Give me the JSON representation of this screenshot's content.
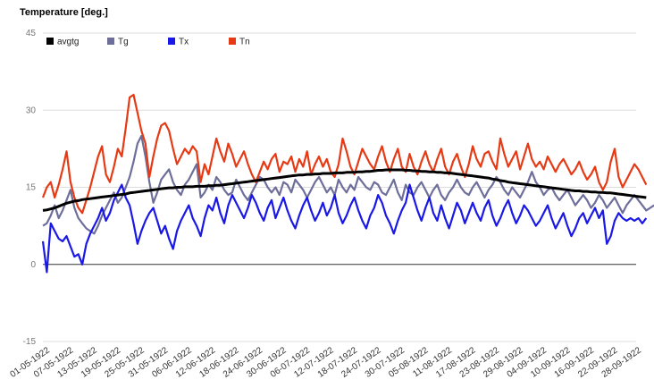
{
  "chart_data": {
    "type": "line",
    "title": "Temperature [deg.]",
    "xlabel": "",
    "ylabel": "",
    "ylim": [
      -15,
      45
    ],
    "yticks": [
      -15,
      0,
      15,
      30,
      45
    ],
    "grid": true,
    "legend_position": "top-left",
    "start_date": "01-05-1922",
    "x_tick_labels": [
      "01-05-1922",
      "07-05-1922",
      "13-05-1922",
      "19-05-1922",
      "25-05-1922",
      "31-05-1922",
      "06-06-1922",
      "12-06-1922",
      "18-06-1922",
      "24-06-1922",
      "30-06-1922",
      "06-07-1922",
      "12-07-1922",
      "18-07-1922",
      "24-07-1922",
      "30-07-1922",
      "05-08-1922",
      "11-08-1922",
      "17-08-1922",
      "23-08-1922",
      "29-08-1922",
      "04-09-1922",
      "10-09-1922",
      "16-09-1922",
      "22-09-1922",
      "28-09-1922"
    ],
    "series": [
      {
        "name": "avgtg",
        "color": "#000000",
        "values": [
          10.5,
          10.6,
          10.8,
          11.0,
          11.3,
          11.6,
          11.9,
          12.1,
          12.3,
          12.4,
          12.6,
          12.7,
          12.8,
          12.9,
          13.0,
          13.1,
          13.2,
          13.3,
          13.4,
          13.5,
          13.6,
          13.7,
          13.9,
          14.0,
          14.1,
          14.2,
          14.3,
          14.4,
          14.5,
          14.6,
          14.7,
          14.8,
          14.9,
          14.9,
          15.0,
          15.0,
          15.1,
          15.1,
          15.1,
          15.2,
          15.2,
          15.2,
          15.3,
          15.3,
          15.4,
          15.4,
          15.5,
          15.6,
          15.7,
          15.8,
          15.9,
          16.0,
          16.1,
          16.2,
          16.3,
          16.4,
          16.5,
          16.6,
          16.7,
          16.8,
          16.9,
          17.0,
          17.1,
          17.2,
          17.3,
          17.4,
          17.4,
          17.5,
          17.5,
          17.6,
          17.6,
          17.7,
          17.7,
          17.7,
          17.8,
          17.8,
          17.8,
          17.9,
          17.9,
          17.9,
          18.0,
          18.0,
          18.1,
          18.1,
          18.2,
          18.3,
          18.3,
          18.4,
          18.4,
          18.4,
          18.4,
          18.4,
          18.3,
          18.3,
          18.2,
          18.2,
          18.1,
          18.1,
          18.0,
          18.0,
          17.9,
          17.9,
          17.8,
          17.8,
          17.7,
          17.6,
          17.5,
          17.4,
          17.3,
          17.2,
          17.1,
          17.0,
          16.9,
          16.8,
          16.6,
          16.5,
          16.3,
          16.2,
          16.0,
          15.9,
          15.8,
          15.7,
          15.6,
          15.5,
          15.4,
          15.3,
          15.2,
          15.1,
          15.0,
          14.9,
          14.8,
          14.7,
          14.6,
          14.5,
          14.4,
          14.3,
          14.3,
          14.2,
          14.2,
          14.1,
          14.1,
          14.0,
          14.0,
          13.9,
          13.9,
          13.8,
          13.7,
          13.6,
          13.5,
          13.4,
          13.3,
          13.2,
          13.1,
          13.0
        ]
      },
      {
        "name": "Tg",
        "color": "#6e6e9a",
        "values": [
          7.5,
          8.0,
          9.5,
          11.5,
          9.0,
          10.5,
          12.5,
          14.5,
          11.0,
          9.0,
          8.0,
          7.0,
          6.5,
          6.0,
          7.5,
          9.5,
          11.0,
          12.5,
          14.0,
          12.0,
          13.0,
          15.0,
          17.0,
          20.0,
          23.5,
          25.0,
          21.0,
          16.0,
          12.0,
          14.0,
          16.5,
          17.5,
          18.5,
          16.0,
          14.5,
          13.5,
          15.5,
          16.5,
          18.0,
          19.5,
          13.0,
          14.0,
          15.5,
          14.5,
          17.0,
          16.0,
          14.5,
          13.5,
          14.0,
          16.5,
          15.0,
          13.5,
          12.5,
          14.0,
          15.5,
          17.0,
          16.5,
          15.0,
          14.0,
          15.0,
          13.5,
          16.0,
          15.5,
          14.0,
          16.5,
          15.5,
          14.5,
          13.0,
          14.5,
          16.0,
          17.0,
          15.5,
          14.0,
          15.0,
          13.5,
          16.5,
          15.0,
          14.0,
          15.5,
          14.5,
          17.0,
          16.0,
          15.0,
          14.5,
          16.0,
          15.5,
          14.0,
          13.5,
          15.0,
          16.5,
          14.0,
          12.5,
          15.5,
          14.0,
          13.5,
          15.0,
          16.0,
          14.5,
          13.0,
          14.5,
          15.5,
          13.5,
          12.5,
          14.0,
          15.0,
          16.5,
          15.0,
          14.0,
          13.5,
          15.0,
          16.0,
          14.5,
          13.0,
          14.5,
          15.5,
          17.0,
          16.0,
          14.5,
          13.5,
          15.0,
          14.0,
          13.0,
          14.5,
          16.0,
          18.0,
          16.0,
          15.0,
          13.5,
          14.5,
          15.0,
          13.5,
          12.5,
          13.5,
          14.5,
          13.0,
          11.5,
          12.5,
          13.5,
          12.5,
          11.0,
          12.0,
          13.5,
          12.5,
          11.0,
          12.0,
          13.0,
          11.5,
          10.0,
          11.5,
          12.5,
          13.5,
          12.5,
          11.5,
          10.5,
          11.0,
          11.5
        ]
      },
      {
        "name": "Tx",
        "color": "#1a18e6",
        "values": [
          4.5,
          -1.5,
          8.0,
          6.5,
          5.0,
          4.5,
          5.5,
          3.5,
          1.5,
          2.0,
          0.0,
          4.0,
          6.0,
          7.5,
          9.0,
          11.0,
          8.5,
          10.0,
          12.5,
          14.0,
          15.5,
          13.0,
          11.5,
          8.0,
          4.0,
          6.5,
          8.5,
          10.0,
          11.0,
          8.5,
          6.0,
          7.5,
          5.0,
          3.0,
          6.5,
          8.5,
          10.0,
          11.5,
          9.0,
          7.5,
          5.5,
          9.0,
          11.5,
          10.5,
          13.0,
          10.0,
          8.0,
          11.5,
          13.5,
          12.0,
          10.5,
          9.0,
          11.0,
          13.5,
          12.0,
          10.0,
          8.5,
          11.0,
          12.5,
          9.0,
          11.0,
          13.0,
          10.5,
          8.5,
          7.0,
          9.5,
          11.5,
          13.0,
          10.5,
          8.5,
          10.0,
          12.0,
          9.5,
          11.0,
          13.5,
          10.0,
          8.0,
          9.5,
          11.5,
          13.0,
          10.5,
          8.5,
          7.0,
          9.5,
          11.0,
          13.5,
          12.0,
          9.5,
          8.0,
          6.0,
          8.5,
          10.5,
          12.0,
          15.5,
          13.0,
          10.5,
          8.5,
          11.0,
          13.0,
          10.0,
          8.5,
          11.5,
          9.0,
          7.0,
          9.5,
          12.0,
          10.5,
          8.0,
          10.0,
          12.0,
          10.0,
          8.5,
          11.0,
          12.5,
          9.5,
          7.5,
          9.0,
          11.0,
          12.5,
          10.0,
          8.0,
          9.5,
          11.5,
          10.5,
          9.0,
          7.5,
          8.5,
          10.0,
          11.5,
          9.0,
          7.0,
          8.5,
          10.0,
          7.5,
          5.5,
          7.0,
          9.0,
          10.0,
          8.0,
          9.5,
          11.0,
          9.0,
          10.5,
          4.0,
          5.5,
          8.5,
          10.0,
          9.0,
          8.5,
          9.0,
          8.5,
          9.0,
          8.0,
          9.0
        ]
      },
      {
        "name": "Tn",
        "color": "#e63a15",
        "values": [
          13.0,
          15.0,
          16.0,
          13.0,
          15.5,
          18.5,
          22.0,
          16.0,
          13.0,
          11.0,
          10.0,
          12.5,
          15.0,
          18.0,
          21.0,
          23.0,
          17.5,
          16.0,
          19.0,
          22.5,
          21.0,
          26.5,
          32.5,
          33.0,
          29.5,
          26.0,
          23.5,
          17.0,
          21.0,
          24.5,
          27.0,
          27.5,
          26.0,
          22.5,
          19.5,
          21.0,
          22.5,
          21.5,
          23.0,
          22.0,
          16.0,
          19.5,
          17.5,
          21.0,
          24.5,
          22.0,
          20.0,
          23.5,
          21.5,
          19.0,
          20.5,
          22.0,
          19.5,
          17.5,
          16.0,
          18.0,
          20.0,
          18.5,
          20.5,
          21.5,
          18.0,
          20.0,
          19.5,
          21.0,
          18.0,
          20.5,
          19.0,
          22.0,
          17.5,
          19.5,
          21.0,
          19.0,
          20.5,
          18.0,
          17.0,
          19.5,
          24.5,
          22.0,
          19.0,
          17.5,
          20.0,
          22.5,
          21.0,
          19.5,
          18.5,
          21.0,
          23.0,
          20.0,
          18.0,
          20.5,
          22.5,
          19.0,
          18.0,
          21.5,
          19.0,
          17.5,
          20.0,
          22.0,
          19.5,
          18.0,
          20.5,
          22.5,
          19.0,
          17.5,
          20.0,
          21.5,
          19.0,
          17.0,
          19.5,
          23.0,
          20.5,
          19.0,
          21.5,
          22.0,
          20.0,
          18.5,
          24.5,
          21.5,
          19.0,
          20.5,
          22.0,
          18.5,
          21.0,
          23.5,
          20.5,
          19.0,
          20.0,
          18.5,
          21.0,
          19.5,
          18.0,
          19.5,
          20.5,
          19.0,
          17.5,
          18.5,
          20.0,
          18.0,
          16.5,
          17.5,
          19.0,
          16.0,
          14.5,
          16.0,
          20.0,
          22.5,
          17.0,
          15.0,
          16.5,
          18.0,
          19.5,
          18.5,
          17.0,
          15.5
        ]
      }
    ]
  }
}
